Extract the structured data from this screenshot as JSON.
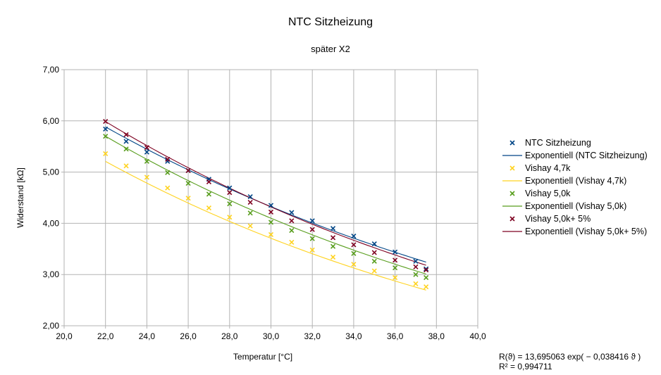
{
  "chart_data": {
    "type": "scatter",
    "title": "NTC Sitzheizung",
    "subtitle": "später X2",
    "xlabel": "Temperatur [°C]",
    "ylabel": "Widerstand [kΩ]",
    "xlim": [
      20,
      40
    ],
    "ylim": [
      2,
      7
    ],
    "x_ticks": [
      "20,0",
      "22,0",
      "24,0",
      "26,0",
      "28,0",
      "30,0",
      "32,0",
      "34,0",
      "36,0",
      "38,0",
      "40,0"
    ],
    "y_ticks": [
      "2,00",
      "3,00",
      "4,00",
      "5,00",
      "6,00",
      "7,00"
    ],
    "grid": true,
    "legend_position": "right",
    "series": [
      {
        "name": "NTC Sitzheizung",
        "color": "#004586",
        "marker": "x",
        "x": [
          22,
          23,
          24,
          25,
          26,
          27,
          28,
          29,
          30,
          31,
          32,
          33,
          34,
          35,
          36,
          37,
          37.5
        ],
        "y": [
          5.84,
          5.6,
          5.39,
          5.21,
          5.03,
          4.86,
          4.69,
          4.52,
          4.35,
          4.21,
          4.05,
          3.9,
          3.75,
          3.6,
          3.44,
          3.26,
          3.11
        ],
        "trendline": {
          "name": "Exponentiell (NTC Sitzheizung)",
          "a": 13.695063,
          "b": -0.038416
        }
      },
      {
        "name": "Vishay 4,7k",
        "color": "#ffd320",
        "marker": "x",
        "x": [
          22,
          23,
          24,
          25,
          26,
          27,
          28,
          29,
          30,
          31,
          32,
          33,
          34,
          35,
          36,
          37,
          37.5
        ],
        "y": [
          5.36,
          5.12,
          4.9,
          4.69,
          4.49,
          4.3,
          4.12,
          3.95,
          3.78,
          3.63,
          3.48,
          3.34,
          3.2,
          3.07,
          2.94,
          2.82,
          2.76
        ],
        "trendline": {
          "name": "Exponentiell (Vishay 4,7k)",
          "a": 13.27,
          "b": -0.0425
        }
      },
      {
        "name": "Vishay 5,0k",
        "color": "#579d1c",
        "marker": "x",
        "x": [
          22,
          23,
          24,
          25,
          26,
          27,
          28,
          29,
          30,
          31,
          32,
          33,
          34,
          35,
          36,
          37,
          37.5
        ],
        "y": [
          5.7,
          5.45,
          5.21,
          4.99,
          4.78,
          4.57,
          4.38,
          4.2,
          4.02,
          3.86,
          3.7,
          3.55,
          3.41,
          3.26,
          3.13,
          3.0,
          2.94
        ],
        "trendline": {
          "name": "Exponentiell (Vishay 5,0k)",
          "a": 14.11,
          "b": -0.0412
        }
      },
      {
        "name": "Vishay 5,0k+ 5%",
        "color": "#7e0021",
        "marker": "x",
        "x": [
          22,
          23,
          24,
          25,
          26,
          27,
          28,
          29,
          30,
          31,
          32,
          33,
          34,
          35,
          36,
          37,
          37.5
        ],
        "y": [
          5.99,
          5.73,
          5.48,
          5.25,
          5.03,
          4.81,
          4.6,
          4.41,
          4.22,
          4.05,
          3.88,
          3.72,
          3.58,
          3.43,
          3.28,
          3.15,
          3.09
        ],
        "trendline": {
          "name": "Exponentiell (Vishay 5,0k+ 5%)",
          "a": 14.69,
          "b": -0.0408
        }
      }
    ],
    "equation": {
      "line1": "R(ϑ) = 13,695063 exp( − 0,038416  ϑ )",
      "line2": "R² = 0,994711"
    }
  }
}
